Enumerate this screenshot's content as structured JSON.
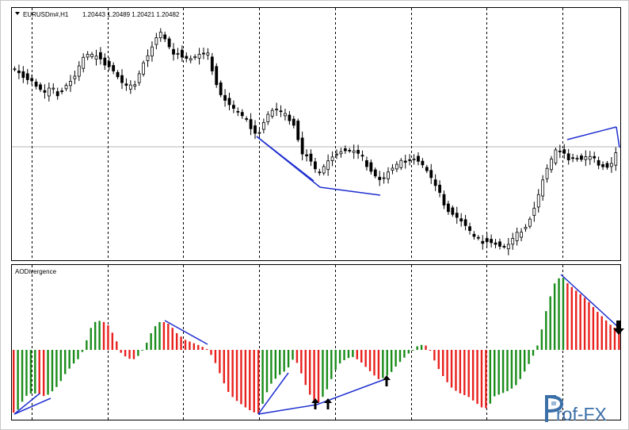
{
  "price_panel": {
    "symbol_label": "EURUSDm#,H1",
    "ohlc_label": "1.20443 1.20489 1.20421 1.20482",
    "collapse_icon": "triangle-down-icon"
  },
  "indicator_panel": {
    "label": "AODivergence"
  },
  "watermark": {
    "text": "rof-FX"
  },
  "colors": {
    "bull_candle": "#ffffff",
    "bear_candle": "#000000",
    "ao_up": "#1a8c1a",
    "ao_down": "#e8211e",
    "divergence_line": "#1f2fd0",
    "grid": "#000000",
    "logo": "#3b6fa8"
  },
  "chart_data": {
    "type": "candlestick_with_histogram",
    "series": []
  }
}
